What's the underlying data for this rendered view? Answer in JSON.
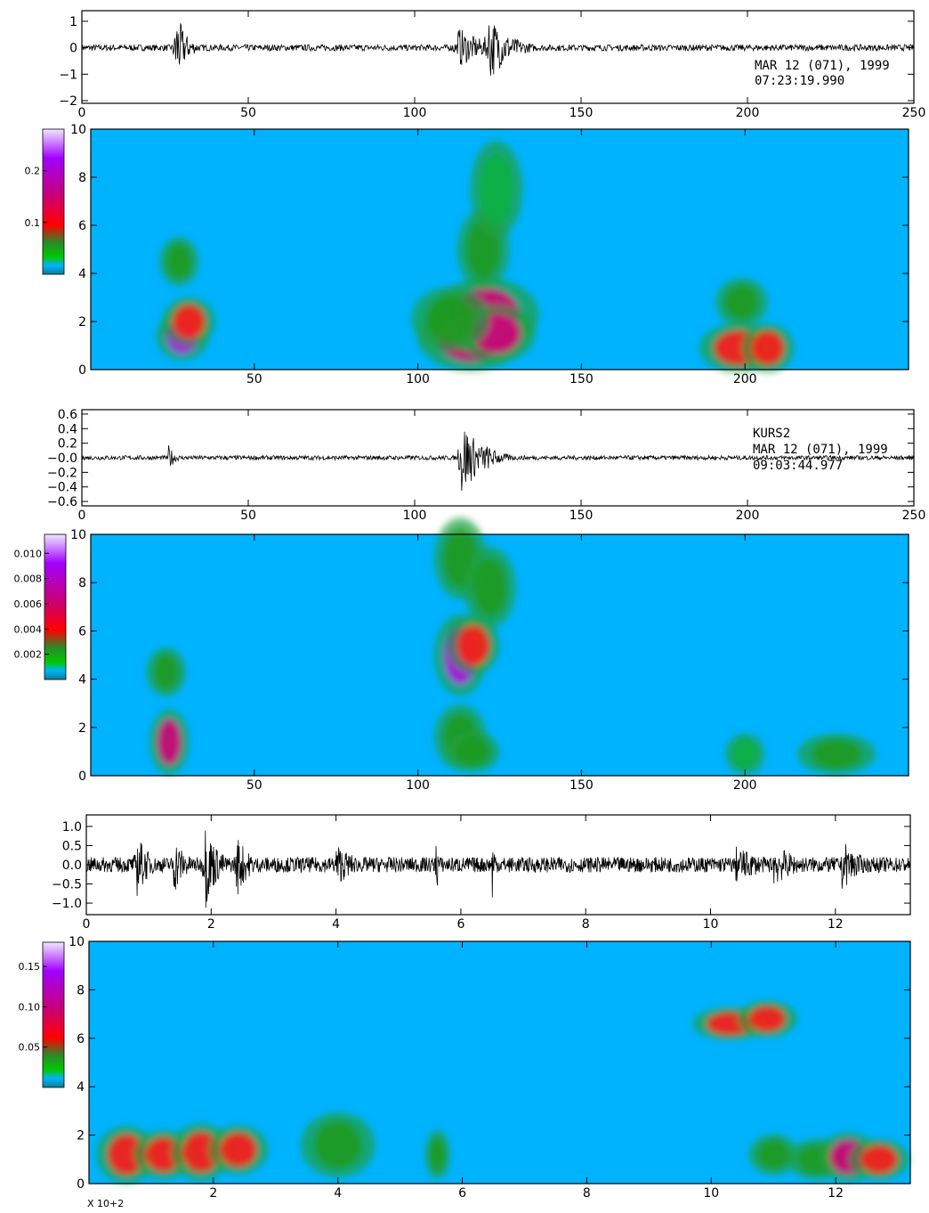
{
  "colors": {
    "background": "#ffffff",
    "spectrogram_background": "#00b3ff",
    "trace": "#000000",
    "colorbar_stops": [
      "#0a7f8f",
      "#00b3ff",
      "#00c800",
      "#2a8a2a",
      "#ff0000",
      "#c8007a",
      "#a000ff",
      "#e8d8ff"
    ]
  },
  "chart_data": [
    {
      "type": "line",
      "panel": "waveform-1",
      "station": "",
      "date": "MAR 12 (071), 1999",
      "time": "07:23:19.990",
      "x_ticks": [
        "0",
        "50",
        "100",
        "150",
        "200",
        "250"
      ],
      "y_ticks": [
        "1",
        "0",
        "−1",
        "−2"
      ],
      "xlim": [
        0,
        250
      ],
      "ylim": [
        -2.1,
        1.4
      ],
      "bursts": [
        {
          "t": 28,
          "amp": 1.6,
          "dur": 3
        },
        {
          "t": 113,
          "amp": 0.8,
          "dur": 8
        },
        {
          "t": 122,
          "amp": 1.4,
          "dur": 6
        }
      ],
      "noise_amp": 0.12
    },
    {
      "type": "heatmap",
      "panel": "spectrogram-1",
      "x_ticks": [
        "50",
        "100",
        "150",
        "200"
      ],
      "y_ticks": [
        "0",
        "2",
        "4",
        "6",
        "8",
        "10"
      ],
      "xlim": [
        0,
        250
      ],
      "ylim": [
        0,
        10
      ],
      "colorbar_ticks": [
        "0.2",
        "0.1"
      ],
      "colorbar_range": [
        0,
        0.28
      ],
      "blobs": [
        {
          "x": 28,
          "y": 1.4,
          "w": 2,
          "h": 0.6,
          "v": 0.26
        },
        {
          "x": 30,
          "y": 2.0,
          "w": 2,
          "h": 0.6,
          "v": 0.1
        },
        {
          "x": 27,
          "y": 4.5,
          "w": 1.5,
          "h": 0.6,
          "v": 0.06
        },
        {
          "x": 116,
          "y": 1.3,
          "w": 4,
          "h": 0.8,
          "v": 0.18
        },
        {
          "x": 121,
          "y": 2.3,
          "w": 4,
          "h": 0.9,
          "v": 0.2
        },
        {
          "x": 124,
          "y": 1.5,
          "w": 3,
          "h": 0.7,
          "v": 0.16
        },
        {
          "x": 110,
          "y": 2.1,
          "w": 3,
          "h": 0.8,
          "v": 0.08
        },
        {
          "x": 120,
          "y": 5.0,
          "w": 2,
          "h": 1.0,
          "v": 0.06
        },
        {
          "x": 124,
          "y": 7.5,
          "w": 2,
          "h": 1.2,
          "v": 0.05
        },
        {
          "x": 198,
          "y": 0.9,
          "w": 3,
          "h": 0.6,
          "v": 0.12
        },
        {
          "x": 207,
          "y": 0.9,
          "w": 2,
          "h": 0.6,
          "v": 0.1
        },
        {
          "x": 199,
          "y": 2.8,
          "w": 2,
          "h": 0.6,
          "v": 0.06
        }
      ]
    },
    {
      "type": "line",
      "panel": "waveform-2",
      "station": "KURS2",
      "date": "MAR 12 (071), 1999",
      "time": "09:03:44.977",
      "x_ticks": [
        "0",
        "50",
        "100",
        "150",
        "200",
        "250"
      ],
      "y_ticks": [
        "0.6",
        "0.4",
        "0.2",
        "−0.0",
        "−0.2",
        "−0.4",
        "−0.6"
      ],
      "xlim": [
        0,
        250
      ],
      "ylim": [
        -0.66,
        0.66
      ],
      "bursts": [
        {
          "t": 26,
          "amp": 0.18,
          "dur": 2
        },
        {
          "t": 114,
          "amp": 0.6,
          "dur": 5
        },
        {
          "t": 121,
          "amp": 0.2,
          "dur": 5
        }
      ],
      "noise_amp": 0.03
    },
    {
      "type": "heatmap",
      "panel": "spectrogram-2",
      "x_ticks": [
        "50",
        "100",
        "150",
        "200"
      ],
      "y_ticks": [
        "0",
        "2",
        "4",
        "6",
        "8",
        "10"
      ],
      "xlim": [
        0,
        250
      ],
      "ylim": [
        0,
        10
      ],
      "colorbar_ticks": [
        "0.010",
        "0.008",
        "0.006",
        "0.004",
        "0.002"
      ],
      "colorbar_range": [
        0,
        0.0115
      ],
      "blobs": [
        {
          "x": 24,
          "y": 1.4,
          "w": 1.5,
          "h": 0.8,
          "v": 0.007
        },
        {
          "x": 23,
          "y": 4.3,
          "w": 1.5,
          "h": 0.6,
          "v": 0.003
        },
        {
          "x": 113,
          "y": 5.0,
          "w": 2,
          "h": 1.0,
          "v": 0.009
        },
        {
          "x": 117,
          "y": 5.4,
          "w": 2,
          "h": 0.7,
          "v": 0.005
        },
        {
          "x": 113,
          "y": 9.0,
          "w": 2,
          "h": 1.0,
          "v": 0.004
        },
        {
          "x": 122,
          "y": 7.8,
          "w": 2,
          "h": 1.0,
          "v": 0.004
        },
        {
          "x": 113,
          "y": 1.6,
          "w": 2,
          "h": 0.8,
          "v": 0.004
        },
        {
          "x": 117,
          "y": 1.0,
          "w": 2,
          "h": 0.5,
          "v": 0.003
        },
        {
          "x": 228,
          "y": 0.9,
          "w": 3,
          "h": 0.5,
          "v": 0.003
        },
        {
          "x": 200,
          "y": 0.9,
          "w": 1.5,
          "h": 0.5,
          "v": 0.002
        }
      ]
    },
    {
      "type": "line",
      "panel": "waveform-3",
      "x_ticks": [
        "0",
        "2",
        "4",
        "6",
        "8",
        "10",
        "12"
      ],
      "y_ticks": [
        "1.0",
        "0.5",
        "0.0",
        "−0.5",
        "−1.0"
      ],
      "xlim": [
        0,
        13.2
      ],
      "ylim": [
        -1.3,
        1.3
      ],
      "bursts": [
        {
          "t": 0.8,
          "amp": 0.9,
          "dur": 0.2
        },
        {
          "t": 1.4,
          "amp": 0.8,
          "dur": 0.2
        },
        {
          "t": 1.9,
          "amp": 1.2,
          "dur": 0.2
        },
        {
          "t": 2.4,
          "amp": 0.9,
          "dur": 0.2
        },
        {
          "t": 4.0,
          "amp": 0.6,
          "dur": 0.3
        },
        {
          "t": 5.6,
          "amp": 1.0,
          "dur": 0.05
        },
        {
          "t": 6.5,
          "amp": 1.1,
          "dur": 0.05
        },
        {
          "t": 10.4,
          "amp": 0.5,
          "dur": 0.5
        },
        {
          "t": 11.0,
          "amp": 0.6,
          "dur": 0.4
        },
        {
          "t": 12.1,
          "amp": 0.7,
          "dur": 0.3
        }
      ],
      "noise_amp": 0.2
    },
    {
      "type": "heatmap",
      "panel": "spectrogram-3",
      "x_ticks": [
        "2",
        "4",
        "6",
        "8",
        "10",
        "12"
      ],
      "y_ticks": [
        "0",
        "2",
        "4",
        "6",
        "8",
        "10"
      ],
      "xlim": [
        0,
        13.2
      ],
      "ylim": [
        0,
        10
      ],
      "x_multiplier": "X 10+2",
      "colorbar_ticks": [
        "0.15",
        "0.10",
        "0.05"
      ],
      "colorbar_range": [
        0,
        0.18
      ],
      "blobs": [
        {
          "x": 0.6,
          "y": 1.2,
          "w": 0.12,
          "h": 0.7,
          "v": 0.07
        },
        {
          "x": 1.2,
          "y": 1.2,
          "w": 0.12,
          "h": 0.6,
          "v": 0.07
        },
        {
          "x": 1.8,
          "y": 1.3,
          "w": 0.12,
          "h": 0.7,
          "v": 0.08
        },
        {
          "x": 2.4,
          "y": 1.4,
          "w": 0.12,
          "h": 0.6,
          "v": 0.07
        },
        {
          "x": 4.0,
          "y": 1.6,
          "w": 0.15,
          "h": 0.8,
          "v": 0.04
        },
        {
          "x": 5.6,
          "y": 1.2,
          "w": 0.05,
          "h": 0.6,
          "v": 0.05
        },
        {
          "x": 10.3,
          "y": 6.6,
          "w": 0.15,
          "h": 0.4,
          "v": 0.08
        },
        {
          "x": 10.9,
          "y": 6.8,
          "w": 0.12,
          "h": 0.45,
          "v": 0.09
        },
        {
          "x": 11.0,
          "y": 1.2,
          "w": 0.1,
          "h": 0.5,
          "v": 0.05
        },
        {
          "x": 11.7,
          "y": 1.0,
          "w": 0.12,
          "h": 0.5,
          "v": 0.06
        },
        {
          "x": 12.2,
          "y": 1.1,
          "w": 0.12,
          "h": 0.6,
          "v": 0.1
        },
        {
          "x": 12.7,
          "y": 1.0,
          "w": 0.12,
          "h": 0.5,
          "v": 0.07
        }
      ]
    }
  ]
}
